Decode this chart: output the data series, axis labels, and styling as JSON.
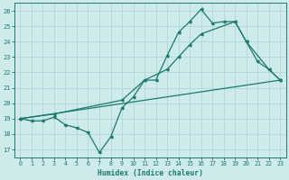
{
  "xlabel": "Humidex (Indice chaleur)",
  "bg_color": "#ceeaea",
  "grid_color": "#aed8d8",
  "line_color": "#1a7a6e",
  "xlim": [
    -0.5,
    23.5
  ],
  "ylim": [
    16.5,
    26.5
  ],
  "yticks": [
    17,
    18,
    19,
    20,
    21,
    22,
    23,
    24,
    25,
    26
  ],
  "xticks": [
    0,
    1,
    2,
    3,
    4,
    5,
    6,
    7,
    8,
    9,
    10,
    11,
    12,
    13,
    14,
    15,
    16,
    17,
    18,
    19,
    20,
    21,
    22,
    23
  ],
  "line1_x": [
    0,
    1,
    2,
    3,
    4,
    5,
    6,
    7,
    8,
    9,
    10,
    11,
    12,
    13,
    14,
    15,
    16,
    17,
    18,
    19,
    20,
    21,
    22,
    23
  ],
  "line1_y": [
    19.0,
    18.85,
    18.85,
    19.1,
    18.6,
    18.4,
    18.1,
    16.8,
    17.8,
    19.7,
    20.4,
    21.5,
    21.5,
    23.1,
    24.6,
    25.3,
    26.1,
    25.2,
    25.3,
    25.3,
    24.0,
    22.7,
    22.2,
    21.5
  ],
  "line2_x": [
    0,
    3,
    9,
    11,
    13,
    14,
    15,
    16,
    19,
    20,
    22,
    23
  ],
  "line2_y": [
    19.0,
    19.3,
    20.2,
    21.5,
    22.2,
    23.0,
    23.8,
    24.5,
    25.3,
    24.0,
    22.2,
    21.5
  ],
  "line3_x": [
    0,
    23
  ],
  "line3_y": [
    19.0,
    21.5
  ]
}
